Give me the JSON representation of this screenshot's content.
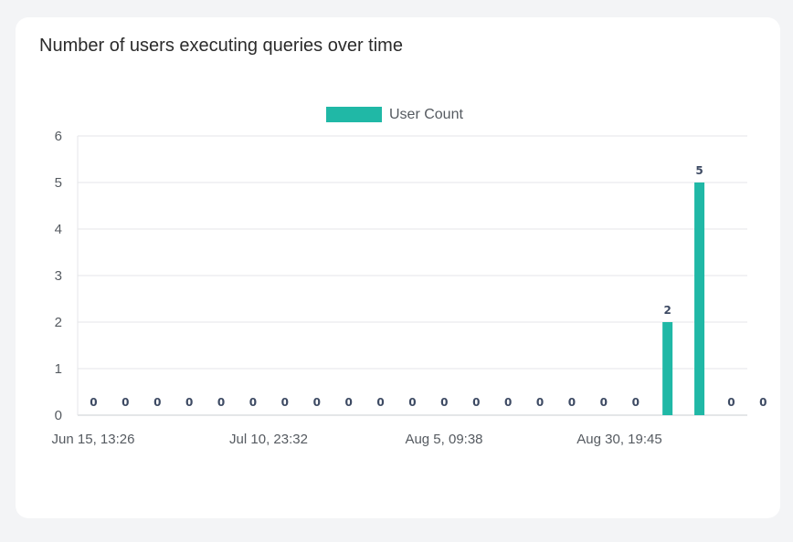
{
  "chart_data": {
    "type": "bar",
    "title": "Number of users executing queries over time",
    "legend": {
      "position": "top-center",
      "entries": [
        "User Count"
      ]
    },
    "series": [
      {
        "name": "User Count",
        "color": "#20b8a6",
        "values": [
          0,
          0,
          0,
          0,
          0,
          0,
          0,
          0,
          0,
          0,
          0,
          0,
          0,
          0,
          0,
          0,
          0,
          0,
          2,
          5,
          0,
          0
        ]
      }
    ],
    "x_tick_labels": [
      "Jun 15, 13:26",
      "Jul 10, 23:32",
      "Aug 5, 09:38",
      "Aug 30, 19:45"
    ],
    "y_ticks": [
      0,
      1,
      2,
      3,
      4,
      5,
      6
    ],
    "ylim": [
      0,
      6
    ],
    "grid": true,
    "xlabel": "",
    "ylabel": ""
  }
}
